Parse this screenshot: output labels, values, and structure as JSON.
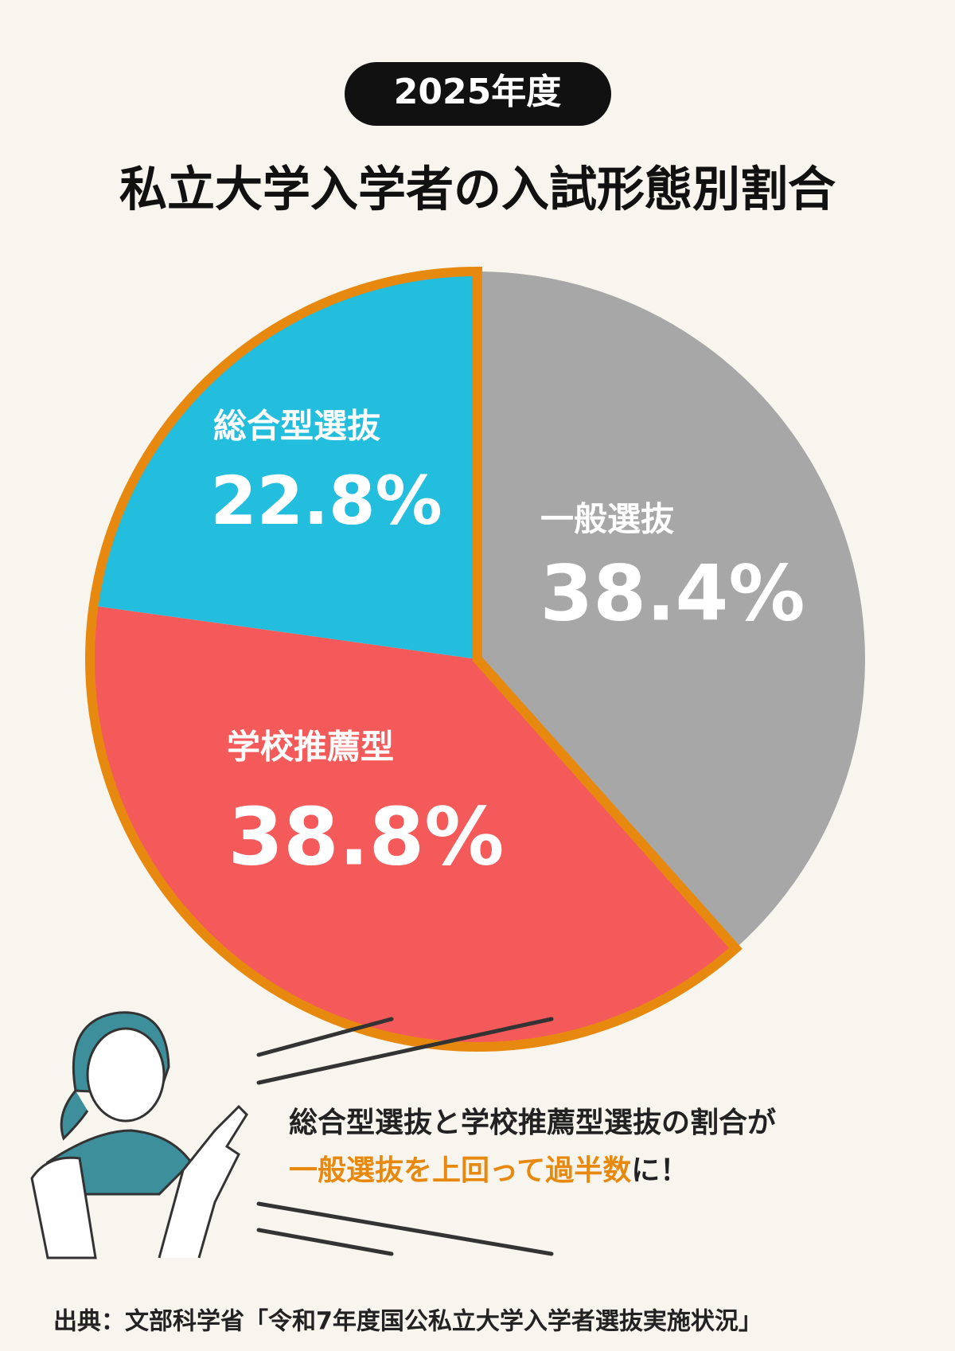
{
  "chart_data": {
    "type": "pie",
    "badge": "2025年度",
    "title": "私立大学入学者の入試形態別割合",
    "categories": [
      "一般選抜",
      "学校推薦型",
      "総合型選抜"
    ],
    "values": [
      38.4,
      38.8,
      22.8
    ],
    "value_labels": [
      "38.4%",
      "38.8%",
      "22.8%"
    ],
    "colors": [
      "#a7a7a7",
      "#f55a5b",
      "#23bddd"
    ],
    "highlight_color": "#e8890f",
    "annotation": {
      "line1": "総合型選抜と学校推薦型選抜の割合が",
      "line2_highlight": "一般選抜を上回って過半数",
      "line2_rest": "に！"
    },
    "source": "出典：文部科学省「令和7年度国公私立大学入学者選抜実施状況」"
  }
}
